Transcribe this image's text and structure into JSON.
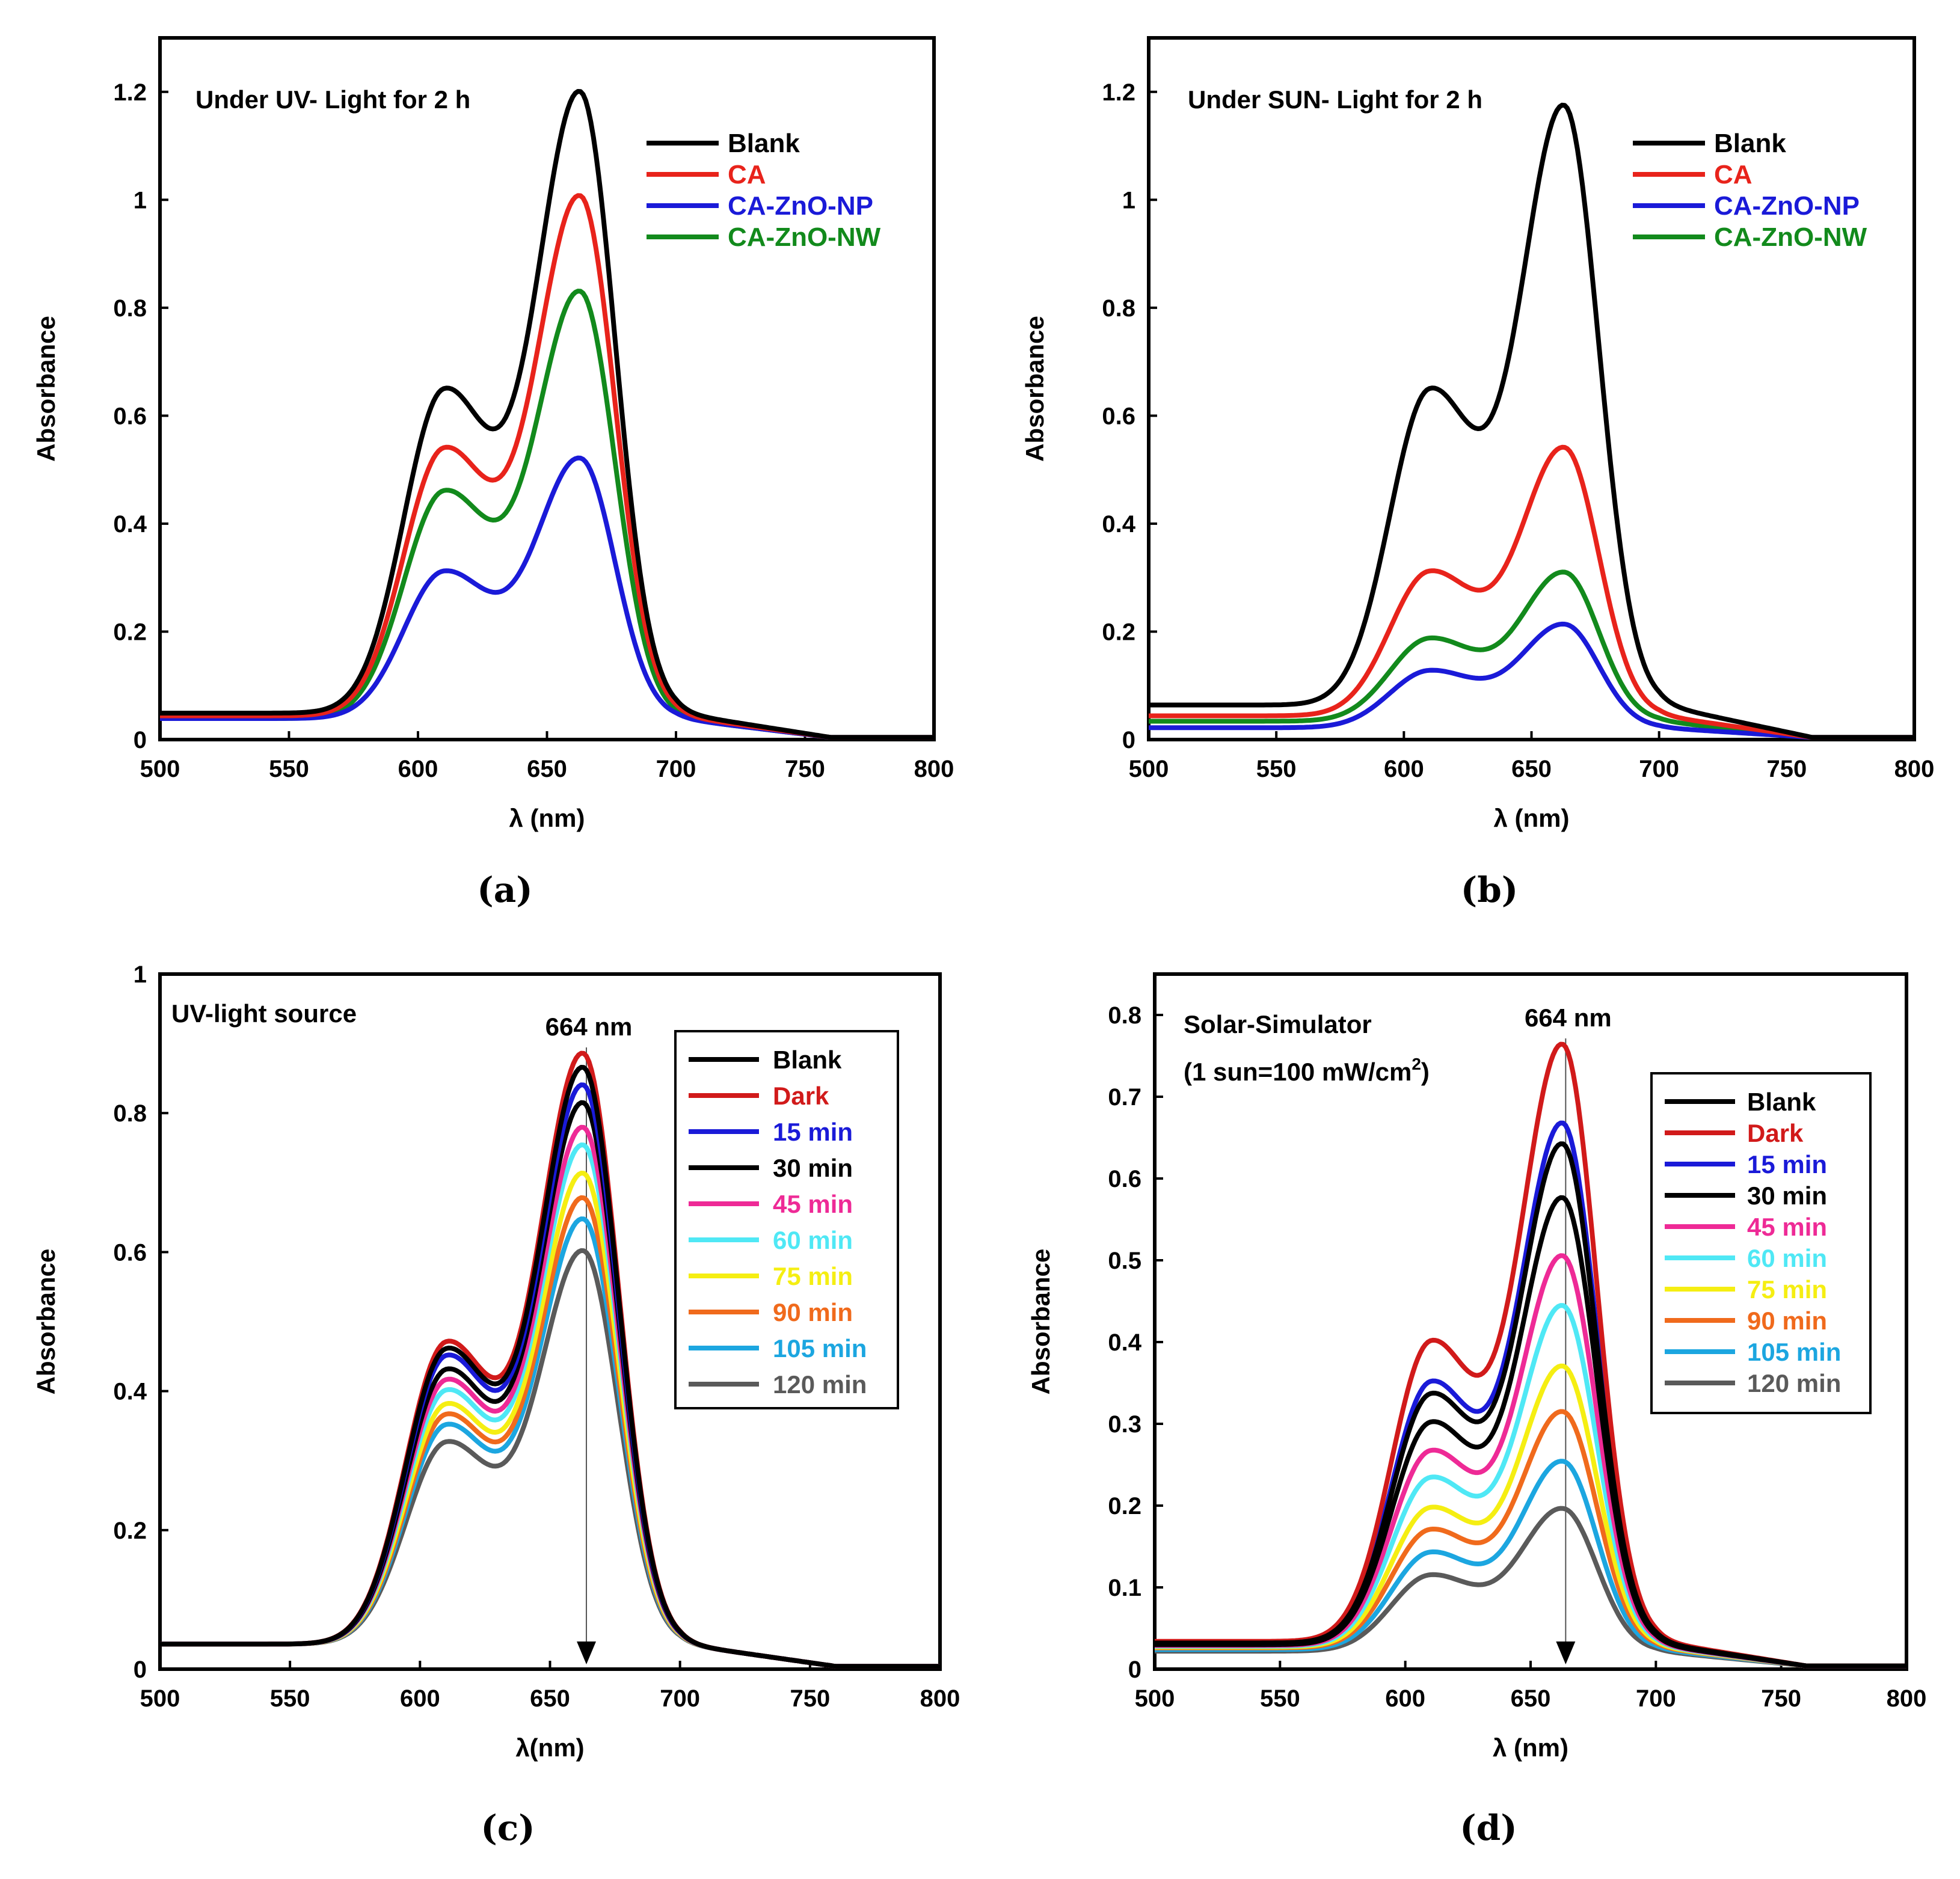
{
  "colors": {
    "black": "#000000",
    "red": "#e8231b",
    "dark_red": "#d11a1a",
    "blue": "#1a1ad8",
    "green": "#128a1c",
    "magenta": "#ee2a96",
    "cyan": "#4fe8f5",
    "yellow": "#f5ee12",
    "orange": "#f06a1c",
    "sky": "#1ca6e0",
    "gray": "#5a5a5a"
  },
  "chart_data": [
    {
      "id": "a",
      "type": "line",
      "panel_label": "(a)",
      "title": "Under UV- Light for 2 h",
      "xlabel": "λ (nm)",
      "ylabel": "Absorbance",
      "xlim": [
        500,
        800
      ],
      "ylim": [
        0,
        1.3
      ],
      "xticks": [
        500,
        550,
        600,
        650,
        700,
        750,
        800
      ],
      "yticks": [
        0,
        0.2,
        0.4,
        0.6,
        0.8,
        1,
        1.2
      ],
      "ytick_labels": [
        "0",
        "0.2",
        "0.4",
        "0.6",
        "0.8",
        "1",
        "1.2"
      ],
      "legend_boxed": false,
      "series": [
        {
          "name": "Blank",
          "color": "#000000",
          "base": 0.045,
          "peak": 1.18,
          "shoulder": 0.65
        },
        {
          "name": "CA",
          "color": "#e8231b",
          "base": 0.04,
          "peak": 0.99,
          "shoulder": 0.54
        },
        {
          "name": "CA-ZnO-NP",
          "color": "#1a1ad8",
          "base": 0.035,
          "peak": 0.51,
          "shoulder": 0.31
        },
        {
          "name": "CA-ZnO-NW",
          "color": "#128a1c",
          "base": 0.035,
          "peak": 0.815,
          "shoulder": 0.46
        }
      ]
    },
    {
      "id": "b",
      "type": "line",
      "panel_label": "(b)",
      "title": "Under SUN- Light for 2 h",
      "xlabel": "λ (nm)",
      "ylabel": "Absorbance",
      "xlim": [
        500,
        800
      ],
      "ylim": [
        0,
        1.3
      ],
      "xticks": [
        500,
        550,
        600,
        650,
        700,
        750,
        800
      ],
      "yticks": [
        0,
        0.2,
        0.4,
        0.6,
        0.8,
        1,
        1.2
      ],
      "ytick_labels": [
        "0",
        "0.2",
        "0.4",
        "0.6",
        "0.8",
        "1",
        "1.2"
      ],
      "legend_boxed": false,
      "series": [
        {
          "name": "Blank",
          "color": "#000000",
          "base": 0.06,
          "peak": 1.155,
          "shoulder": 0.65
        },
        {
          "name": "CA",
          "color": "#e8231b",
          "base": 0.04,
          "peak": 0.53,
          "shoulder": 0.31
        },
        {
          "name": "CA-ZnO-NP",
          "color": "#1a1ad8",
          "base": 0.018,
          "peak": 0.207,
          "shoulder": 0.125
        },
        {
          "name": "CA-ZnO-NW",
          "color": "#128a1c",
          "base": 0.03,
          "peak": 0.302,
          "shoulder": 0.185
        }
      ]
    },
    {
      "id": "c",
      "type": "line",
      "panel_label": "(c)",
      "title": "UV-light source",
      "annotation": "664 nm",
      "marker_x": 664,
      "xlabel": "λ(nm)",
      "ylabel": "Absorbance",
      "xlim": [
        500,
        800
      ],
      "ylim": [
        0,
        1
      ],
      "xticks": [
        500,
        550,
        600,
        650,
        700,
        750,
        800
      ],
      "yticks": [
        0,
        0.2,
        0.4,
        0.6,
        0.8,
        1
      ],
      "ytick_labels": [
        "0",
        "0.2",
        "0.4",
        "0.6",
        "0.8",
        "1"
      ],
      "legend_boxed": true,
      "series": [
        {
          "name": "Blank",
          "color": "#000000",
          "base": 0.032,
          "peak": 0.85,
          "shoulder": 0.46
        },
        {
          "name": "Dark",
          "color": "#d11a1a",
          "base": 0.032,
          "peak": 0.87,
          "shoulder": 0.47
        },
        {
          "name": "15 min",
          "color": "#1a1ad8",
          "base": 0.032,
          "peak": 0.825,
          "shoulder": 0.45
        },
        {
          "name": "30 min",
          "color": "#000000",
          "base": 0.032,
          "peak": 0.8,
          "shoulder": 0.43
        },
        {
          "name": "45 min",
          "color": "#ee2a96",
          "base": 0.032,
          "peak": 0.765,
          "shoulder": 0.415
        },
        {
          "name": "60 min",
          "color": "#4fe8f5",
          "base": 0.032,
          "peak": 0.74,
          "shoulder": 0.4
        },
        {
          "name": "75 min",
          "color": "#f5ee12",
          "base": 0.032,
          "peak": 0.7,
          "shoulder": 0.38
        },
        {
          "name": "90 min",
          "color": "#f06a1c",
          "base": 0.032,
          "peak": 0.665,
          "shoulder": 0.365
        },
        {
          "name": "105 min",
          "color": "#1ca6e0",
          "base": 0.032,
          "peak": 0.635,
          "shoulder": 0.35
        },
        {
          "name": "120 min",
          "color": "#5a5a5a",
          "base": 0.032,
          "peak": 0.59,
          "shoulder": 0.325
        }
      ]
    },
    {
      "id": "d",
      "type": "line",
      "panel_label": "(d)",
      "title": "Solar-Simulator",
      "subtitle_pre": "(1 sun=100 mW/cm",
      "subtitle_sup": "2",
      "subtitle_post": ")",
      "annotation": "664 nm",
      "marker_x": 664,
      "xlabel": "λ (nm)",
      "ylabel": "Absorbance",
      "xlim": [
        500,
        800
      ],
      "ylim": [
        0,
        0.85
      ],
      "xticks": [
        500,
        550,
        600,
        650,
        700,
        750,
        800
      ],
      "yticks": [
        0,
        0.1,
        0.2,
        0.3,
        0.4,
        0.5,
        0.6,
        0.7,
        0.8
      ],
      "ytick_labels": [
        "0",
        "0.1",
        "0.2",
        "0.3",
        "0.4",
        "0.5",
        "0.6",
        "0.7",
        "0.8"
      ],
      "legend_boxed": true,
      "series": [
        {
          "name": "Blank",
          "color": "#000000",
          "base": 0.028,
          "peak": 0.63,
          "shoulder": 0.335
        },
        {
          "name": "Dark",
          "color": "#d11a1a",
          "base": 0.03,
          "peak": 0.75,
          "shoulder": 0.4
        },
        {
          "name": "15 min",
          "color": "#1a1ad8",
          "base": 0.028,
          "peak": 0.655,
          "shoulder": 0.35
        },
        {
          "name": "30 min",
          "color": "#000000",
          "base": 0.026,
          "peak": 0.565,
          "shoulder": 0.3
        },
        {
          "name": "45 min",
          "color": "#ee2a96",
          "base": 0.025,
          "peak": 0.495,
          "shoulder": 0.265
        },
        {
          "name": "60 min",
          "color": "#4fe8f5",
          "base": 0.024,
          "peak": 0.435,
          "shoulder": 0.232
        },
        {
          "name": "75 min",
          "color": "#f5ee12",
          "base": 0.023,
          "peak": 0.362,
          "shoulder": 0.195
        },
        {
          "name": "90 min",
          "color": "#f06a1c",
          "base": 0.022,
          "peak": 0.307,
          "shoulder": 0.168
        },
        {
          "name": "105 min",
          "color": "#1ca6e0",
          "base": 0.02,
          "peak": 0.247,
          "shoulder": 0.14
        },
        {
          "name": "120 min",
          "color": "#5a5a5a",
          "base": 0.018,
          "peak": 0.19,
          "shoulder": 0.112
        }
      ]
    }
  ]
}
